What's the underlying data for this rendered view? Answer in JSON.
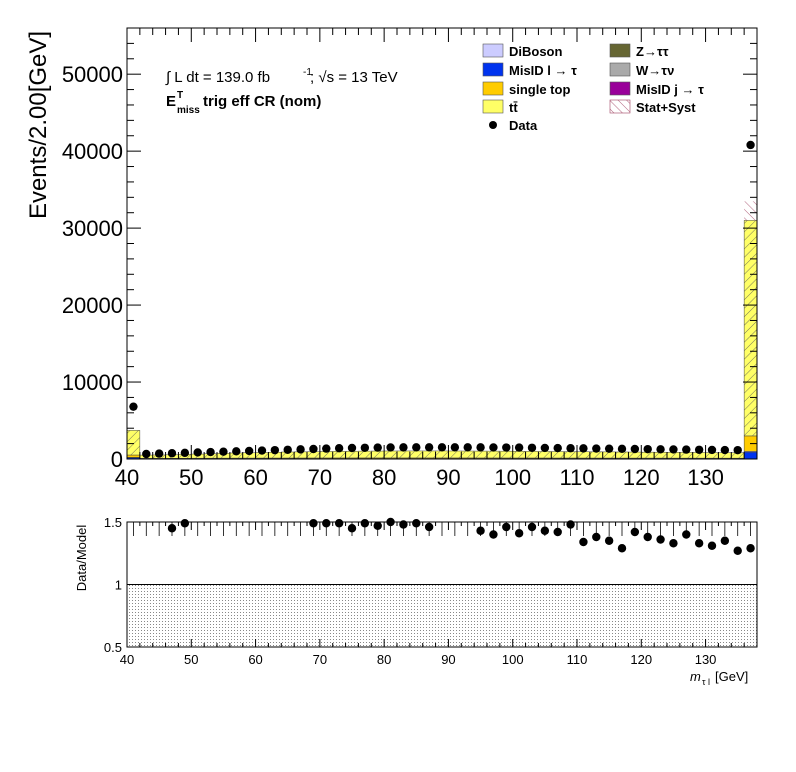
{
  "chart_data": [
    {
      "type": "bar",
      "stacked": true,
      "bin_width": 2.0,
      "x": [
        40,
        42,
        44,
        46,
        48,
        50,
        52,
        54,
        56,
        58,
        60,
        62,
        64,
        66,
        68,
        70,
        72,
        74,
        76,
        78,
        80,
        82,
        84,
        86,
        88,
        90,
        92,
        94,
        96,
        98,
        100,
        102,
        104,
        106,
        108,
        110,
        112,
        114,
        116,
        118,
        120,
        122,
        124,
        126,
        128,
        130,
        132,
        134,
        136
      ],
      "ylabel": "Events/2.00[GeV]",
      "ylim": [
        0,
        56000
      ],
      "xlim": [
        40,
        138
      ],
      "x_ticks": [
        40,
        50,
        60,
        70,
        80,
        90,
        100,
        110,
        120,
        130
      ],
      "y_ticks": [
        0,
        10000,
        20000,
        30000,
        40000,
        50000
      ],
      "annotations": {
        "luminosity": "∫ L dt = 139.0 fb",
        "lumi_exponent": "-1",
        "energy": ";  √s = 13 TeV",
        "region_main": "E",
        "region_sup": "T",
        "region_sub": "miss",
        "region_rest": " trig eff CR (nom)"
      },
      "series": [
        {
          "name": "MisID l → τ",
          "color": "#0033ee",
          "values": [
            200,
            40,
            40,
            40,
            40,
            40,
            40,
            40,
            40,
            40,
            40,
            40,
            40,
            40,
            40,
            40,
            40,
            40,
            40,
            40,
            40,
            40,
            40,
            40,
            40,
            40,
            40,
            40,
            40,
            40,
            40,
            40,
            40,
            40,
            40,
            40,
            40,
            40,
            40,
            40,
            40,
            40,
            40,
            40,
            40,
            40,
            40,
            40,
            900
          ]
        },
        {
          "name": "DiBoson",
          "color": "#ccccff",
          "values": [
            20,
            10,
            10,
            10,
            10,
            10,
            10,
            10,
            10,
            10,
            10,
            10,
            10,
            10,
            10,
            10,
            10,
            10,
            10,
            10,
            10,
            10,
            10,
            10,
            10,
            10,
            10,
            10,
            10,
            10,
            10,
            10,
            10,
            10,
            10,
            10,
            10,
            10,
            10,
            10,
            10,
            10,
            10,
            10,
            10,
            10,
            10,
            10,
            100
          ]
        },
        {
          "name": "single top",
          "color": "#ffcc00",
          "values": [
            300,
            40,
            40,
            45,
            50,
            55,
            60,
            65,
            70,
            72,
            75,
            78,
            80,
            82,
            85,
            88,
            90,
            90,
            92,
            92,
            92,
            92,
            92,
            92,
            92,
            90,
            90,
            88,
            88,
            86,
            85,
            84,
            82,
            80,
            80,
            78,
            76,
            75,
            73,
            72,
            70,
            70,
            68,
            66,
            65,
            64,
            62,
            60,
            2000
          ]
        },
        {
          "name": "tt̄",
          "color": "#ffff66",
          "hatched": true,
          "values": [
            3200,
            420,
            440,
            470,
            500,
            540,
            580,
            620,
            660,
            690,
            720,
            750,
            780,
            800,
            820,
            840,
            860,
            870,
            880,
            890,
            900,
            905,
            905,
            905,
            905,
            900,
            895,
            890,
            885,
            880,
            870,
            860,
            850,
            840,
            830,
            820,
            810,
            800,
            790,
            780,
            770,
            760,
            750,
            740,
            730,
            720,
            710,
            700,
            28000
          ]
        }
      ],
      "data": {
        "name": "Data",
        "values": [
          6800,
          650,
          700,
          750,
          800,
          850,
          900,
          950,
          1000,
          1050,
          1100,
          1150,
          1200,
          1250,
          1300,
          1350,
          1400,
          1430,
          1460,
          1480,
          1500,
          1510,
          1520,
          1520,
          1520,
          1520,
          1520,
          1510,
          1500,
          1490,
          1480,
          1460,
          1440,
          1420,
          1400,
          1380,
          1360,
          1340,
          1320,
          1300,
          1280,
          1260,
          1240,
          1220,
          1200,
          1180,
          1160,
          1150,
          40800
        ]
      },
      "legend": {
        "placement": "top-right",
        "left_column": [
          "DiBoson",
          "MisID l → τ",
          "single top",
          "tt̄",
          "Data"
        ],
        "right_column": [
          "Z→ττ",
          "W→τν",
          "MisID j → τ",
          "Stat+Syst"
        ],
        "colors": {
          "Z→ττ": "#666633",
          "W→τν": "#aaaaaa",
          "MisID j → τ": "#990099"
        }
      }
    },
    {
      "type": "scatter",
      "xlabel": "m",
      "xlabel_sub": "τ l",
      "xlabel_unit": " [GeV]",
      "ylabel": "Data/Model",
      "ylim": [
        0.5,
        1.5
      ],
      "xlim": [
        40,
        138
      ],
      "x_ticks": [
        40,
        50,
        60,
        70,
        80,
        90,
        100,
        110,
        120,
        130
      ],
      "y_ticks": [
        0.5,
        1,
        1.5
      ],
      "y_tick_labels": [
        "0.5",
        "1",
        "1.5"
      ],
      "uncertainty_band": [
        0.5,
        1.0
      ],
      "x": [
        47,
        49,
        69,
        71,
        73,
        75,
        77,
        79,
        81,
        83,
        85,
        87,
        95,
        97,
        99,
        101,
        103,
        105,
        107,
        109,
        111,
        113,
        115,
        117,
        119,
        121,
        123,
        125,
        127,
        129,
        131,
        133,
        135,
        137
      ],
      "values": [
        1.45,
        1.49,
        1.49,
        1.49,
        1.49,
        1.45,
        1.49,
        1.47,
        1.5,
        1.48,
        1.49,
        1.46,
        1.43,
        1.4,
        1.46,
        1.41,
        1.46,
        1.43,
        1.42,
        1.48,
        1.34,
        1.38,
        1.35,
        1.29,
        1.42,
        1.38,
        1.36,
        1.33,
        1.4,
        1.33,
        1.31,
        1.35,
        1.27,
        1.29
      ]
    }
  ]
}
